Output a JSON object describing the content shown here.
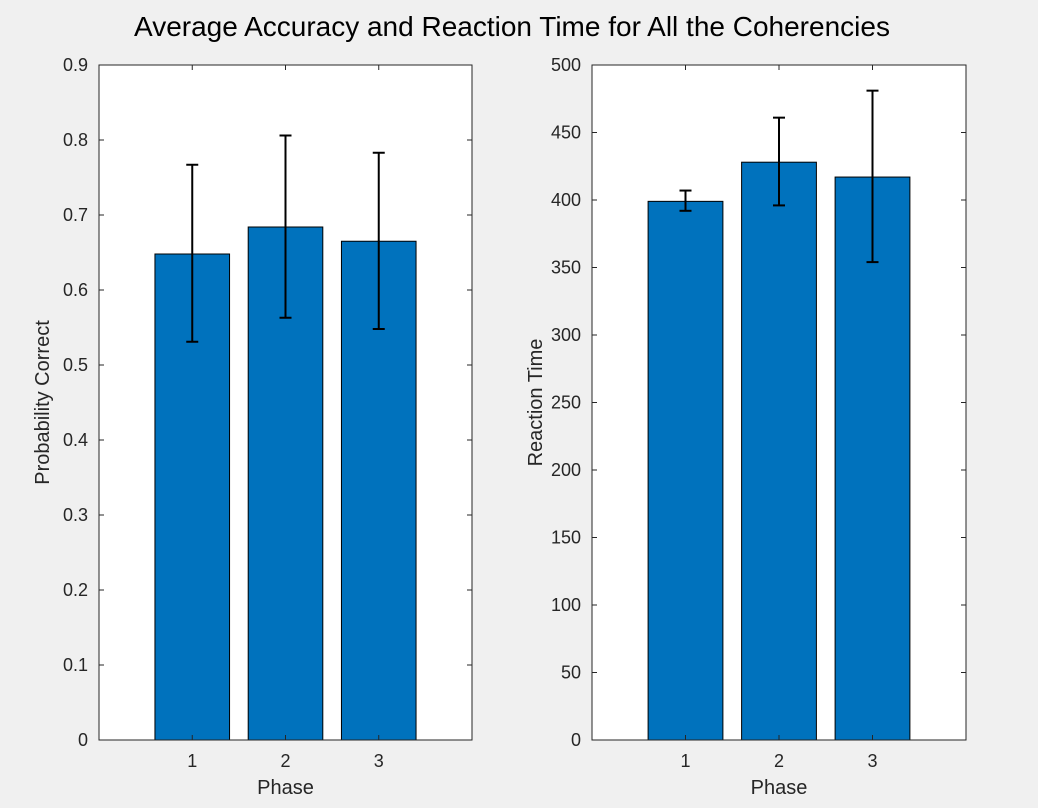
{
  "title": "Average Accuracy and Reaction Time for All the Coherencies",
  "colors": {
    "bar": "#0072BD",
    "errorbar": "#000000",
    "axis": "#262626",
    "figure_bg": "#f0f0f0",
    "axes_bg": "#ffffff"
  },
  "chart_data": [
    {
      "type": "bar",
      "categories": [
        "1",
        "2",
        "3"
      ],
      "values": [
        0.648,
        0.684,
        0.665
      ],
      "error_low": [
        0.531,
        0.563,
        0.548
      ],
      "error_high": [
        0.767,
        0.806,
        0.783
      ],
      "xlabel": "Phase",
      "ylabel": "Probability Correct",
      "xlim": [
        0,
        4
      ],
      "ylim": [
        0,
        0.9
      ],
      "yticks": [
        "0",
        "0.1",
        "0.2",
        "0.3",
        "0.4",
        "0.5",
        "0.6",
        "0.7",
        "0.8",
        "0.9"
      ],
      "grid": false
    },
    {
      "type": "bar",
      "categories": [
        "1",
        "2",
        "3"
      ],
      "values": [
        399,
        428,
        417
      ],
      "error_low": [
        392,
        396,
        354
      ],
      "error_high": [
        407,
        461,
        481
      ],
      "xlabel": "Phase",
      "ylabel": "Reaction Time",
      "xlim": [
        0,
        4
      ],
      "ylim": [
        0,
        500
      ],
      "yticks": [
        "0",
        "50",
        "100",
        "150",
        "200",
        "250",
        "300",
        "350",
        "400",
        "450",
        "500"
      ],
      "grid": false
    }
  ]
}
